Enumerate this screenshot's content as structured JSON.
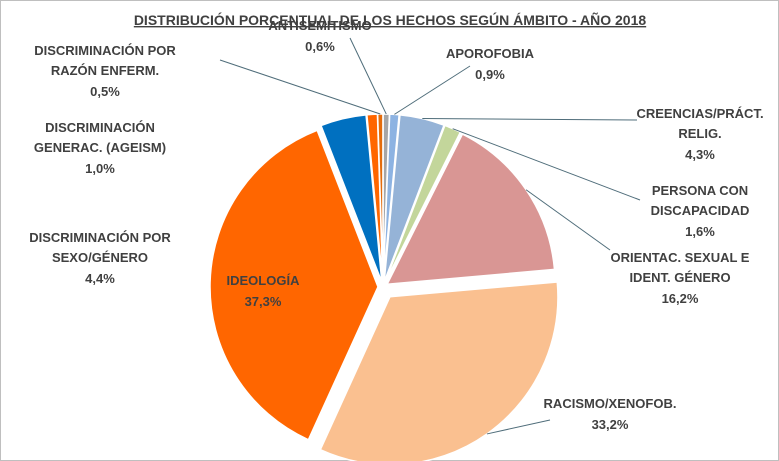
{
  "chart_data": {
    "type": "pie",
    "title": "DISTRIBUCIÓN PORCENTUAL DE LOS HECHOS SEGÚN ÁMBITO - AÑO 2018",
    "categories": [
      "ANTISEMITISMO",
      "APOROFOBIA",
      "CREENCIAS/PRÁCT.\nRELIG.",
      "PERSONA CON\nDISCAPACIDAD",
      "ORIENTAC. SEXUAL E\nIDENT. GÉNERO",
      "RACISMO/XENOFOB.",
      "IDEOLOGÍA",
      "DISCRIMINACIÓN POR\nSEXO/GÉNERO",
      "DISCRIMINACIÓN\nGENERAC. (AGEISM)",
      "DISCRIMINACIÓN POR\nRAZÓN ENFERM."
    ],
    "values": [
      0.6,
      0.9,
      4.3,
      1.6,
      16.2,
      33.2,
      37.3,
      4.4,
      1.0,
      0.5
    ],
    "value_labels": [
      "0,6%",
      "0,9%",
      "4,3%",
      "1,6%",
      "16,2%",
      "33,2%",
      "37,3%",
      "4,4%",
      "1,0%",
      "0,5%"
    ],
    "colors": [
      "#a6a6a6",
      "#8db3e2",
      "#95b3d7",
      "#c3d69b",
      "#d99694",
      "#fac090",
      "#ff6600",
      "#0070c0",
      "#ff6600",
      "#e46c0a"
    ]
  }
}
